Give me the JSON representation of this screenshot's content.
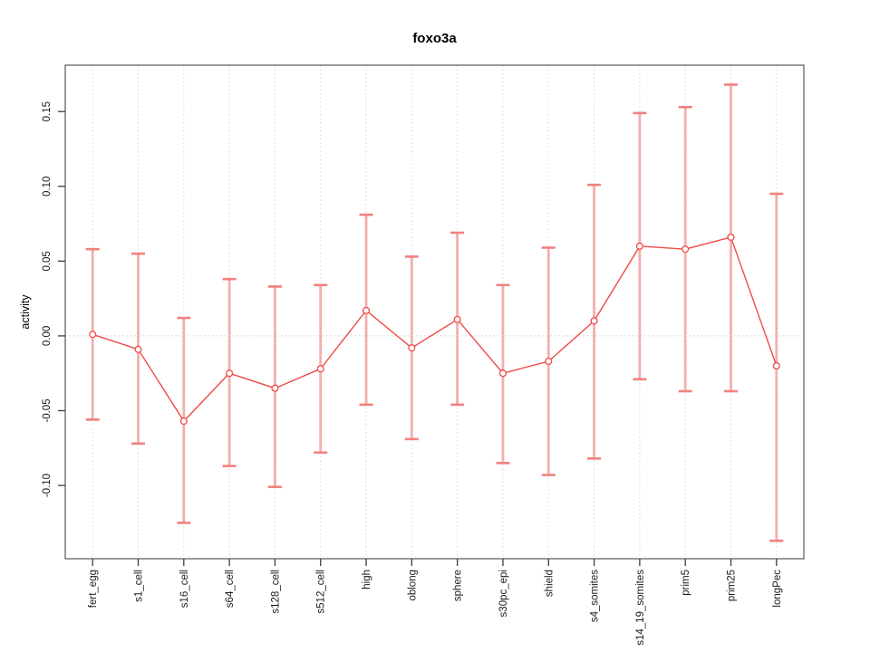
{
  "chart_data": {
    "type": "line",
    "title": "foxo3a",
    "xlabel": "",
    "ylabel": "activity",
    "categories": [
      "fert_egg",
      "s1_cell",
      "s16_cell",
      "s64_cell",
      "s128_cell",
      "s512_cell",
      "high",
      "oblong",
      "sphere",
      "s30pc_epi",
      "shield",
      "s4_somites",
      "s14_19_somites",
      "prim5",
      "prim25",
      "longPec"
    ],
    "values": [
      0.001,
      -0.009,
      -0.057,
      -0.025,
      -0.035,
      -0.022,
      0.017,
      -0.008,
      0.011,
      -0.025,
      -0.017,
      0.01,
      0.06,
      0.058,
      0.066,
      -0.02
    ],
    "error_upper": [
      0.058,
      0.055,
      0.012,
      0.038,
      0.033,
      0.034,
      0.081,
      0.053,
      0.069,
      0.034,
      0.059,
      0.101,
      0.149,
      0.153,
      0.168,
      0.095
    ],
    "error_lower": [
      -0.056,
      -0.072,
      -0.125,
      -0.087,
      -0.101,
      -0.078,
      -0.046,
      -0.069,
      -0.046,
      -0.085,
      -0.093,
      -0.082,
      -0.029,
      -0.037,
      -0.037,
      -0.137
    ],
    "yticks": [
      -0.1,
      -0.05,
      0.0,
      0.05,
      0.1,
      0.15
    ],
    "ytick_labels": [
      "-0.10",
      "-0.05",
      "0.00",
      "0.05",
      "0.10",
      "0.15"
    ],
    "ylim": [
      -0.149,
      0.181
    ],
    "grid": {
      "vertical_dotted_per_category": true,
      "horizontal_dotted_at_zero": true
    },
    "legend": "none",
    "marker": "open-circle",
    "colors": {
      "series": "#ee4b47",
      "error_bar": "#f6a9a7",
      "error_bar_cap": "#f0817e",
      "grid": "#d6d6d6",
      "zero_line": "#cccccc",
      "axis_box": "#6f6f6f",
      "tick_mark": "#3c3c3c"
    }
  }
}
